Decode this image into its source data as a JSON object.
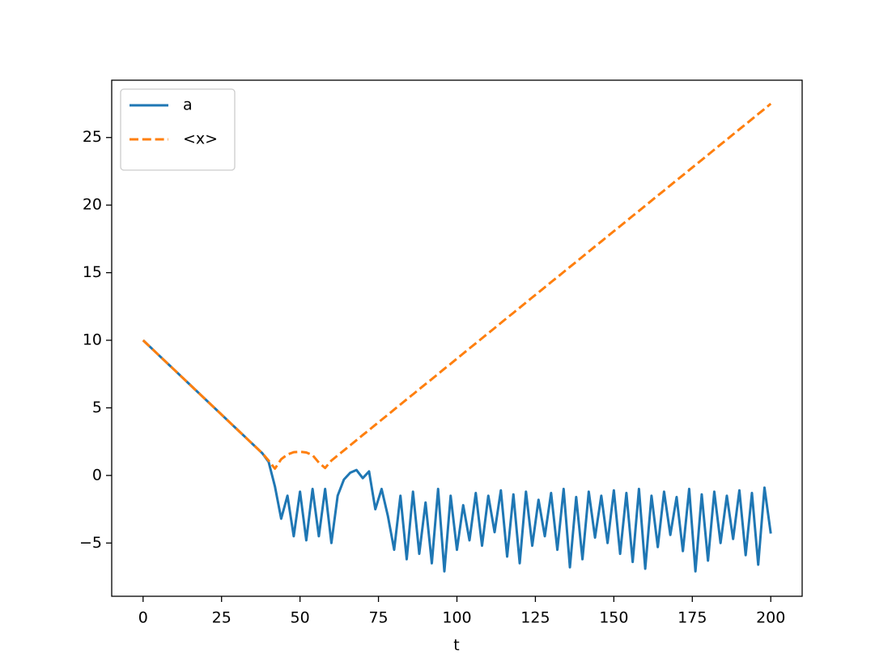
{
  "chart_data": {
    "type": "line",
    "xlabel": "t",
    "x": [
      0,
      2,
      4,
      6,
      8,
      10,
      12,
      14,
      16,
      18,
      20,
      22,
      24,
      26,
      28,
      30,
      32,
      34,
      36,
      38,
      40,
      42,
      44,
      46,
      48,
      50,
      52,
      54,
      56,
      58,
      60,
      62,
      64,
      66,
      68,
      70,
      72,
      74,
      76,
      78,
      80,
      82,
      84,
      86,
      88,
      90,
      92,
      94,
      96,
      98,
      100,
      102,
      104,
      106,
      108,
      110,
      112,
      114,
      116,
      118,
      120,
      122,
      124,
      126,
      128,
      130,
      132,
      134,
      136,
      138,
      140,
      142,
      144,
      146,
      148,
      150,
      152,
      154,
      156,
      158,
      160,
      162,
      164,
      166,
      168,
      170,
      172,
      174,
      176,
      178,
      180,
      182,
      184,
      186,
      188,
      190,
      192,
      194,
      196,
      198,
      200
    ],
    "series": [
      {
        "name": "a",
        "color": "#1f77b4",
        "linestyle": "solid",
        "values": [
          10,
          9.56,
          9.12,
          8.68,
          8.24,
          7.8,
          7.36,
          6.92,
          6.48,
          6.04,
          5.6,
          5.16,
          4.72,
          4.28,
          3.84,
          3.4,
          2.96,
          2.52,
          2.08,
          1.64,
          1.0,
          -0.8,
          -3.2,
          -1.5,
          -4.5,
          -1.2,
          -4.8,
          -1.0,
          -4.5,
          -1.0,
          -5.0,
          -1.5,
          -0.3,
          0.2,
          0.4,
          -0.2,
          0.3,
          -2.5,
          -1.0,
          -3.0,
          -5.5,
          -1.5,
          -6.2,
          -1.2,
          -5.8,
          -2.0,
          -6.5,
          -1.0,
          -7.1,
          -1.5,
          -5.5,
          -2.2,
          -4.8,
          -1.3,
          -5.2,
          -1.5,
          -4.2,
          -1.1,
          -6.0,
          -1.4,
          -6.5,
          -1.2,
          -5.2,
          -1.8,
          -4.5,
          -1.3,
          -5.5,
          -1.0,
          -6.8,
          -1.6,
          -6.2,
          -1.2,
          -4.6,
          -1.5,
          -5.0,
          -1.1,
          -5.8,
          -1.3,
          -6.4,
          -1.0,
          -6.9,
          -1.5,
          -5.3,
          -1.2,
          -4.4,
          -1.6,
          -5.6,
          -1.0,
          -7.1,
          -1.4,
          -6.3,
          -1.2,
          -5.0,
          -1.5,
          -4.7,
          -1.1,
          -5.9,
          -1.3,
          -6.6,
          -0.9,
          -4.3
        ]
      },
      {
        "name": "<x>",
        "color": "#ff7f0e",
        "linestyle": "dashed",
        "values": [
          10,
          9.56,
          9.12,
          8.68,
          8.24,
          7.8,
          7.36,
          6.92,
          6.48,
          6.04,
          5.6,
          5.16,
          4.72,
          4.28,
          3.84,
          3.4,
          2.96,
          2.52,
          2.08,
          1.64,
          1.1,
          0.5,
          1.2,
          1.55,
          1.72,
          1.75,
          1.7,
          1.5,
          0.95,
          0.55,
          1.1,
          1.48,
          1.85,
          2.23,
          2.61,
          2.99,
          3.36,
          3.74,
          4.12,
          4.49,
          4.87,
          5.25,
          5.63,
          6.0,
          6.38,
          6.76,
          7.13,
          7.51,
          7.89,
          8.26,
          8.64,
          9.02,
          9.4,
          9.77,
          10.15,
          10.53,
          10.9,
          11.28,
          11.66,
          12.03,
          12.41,
          12.79,
          13.17,
          13.54,
          13.92,
          14.3,
          14.67,
          15.05,
          15.43,
          15.8,
          16.18,
          16.56,
          16.94,
          17.31,
          17.69,
          18.07,
          18.44,
          18.82,
          19.2,
          19.57,
          19.95,
          20.33,
          20.71,
          21.08,
          21.46,
          21.84,
          22.21,
          22.59,
          22.97,
          23.34,
          23.72,
          24.1,
          24.48,
          24.85,
          25.23,
          25.61,
          25.98,
          26.36,
          26.74,
          27.11,
          27.5
        ]
      }
    ],
    "xlim": [
      -10,
      210
    ],
    "ylim": [
      -8.94,
      29.24
    ],
    "xticks": [
      0,
      25,
      50,
      75,
      100,
      125,
      150,
      175,
      200
    ],
    "yticks": [
      {
        "value": -5,
        "label": "−5"
      },
      0,
      5,
      10,
      15,
      20,
      25
    ],
    "grid": false,
    "legend": "upper left"
  }
}
